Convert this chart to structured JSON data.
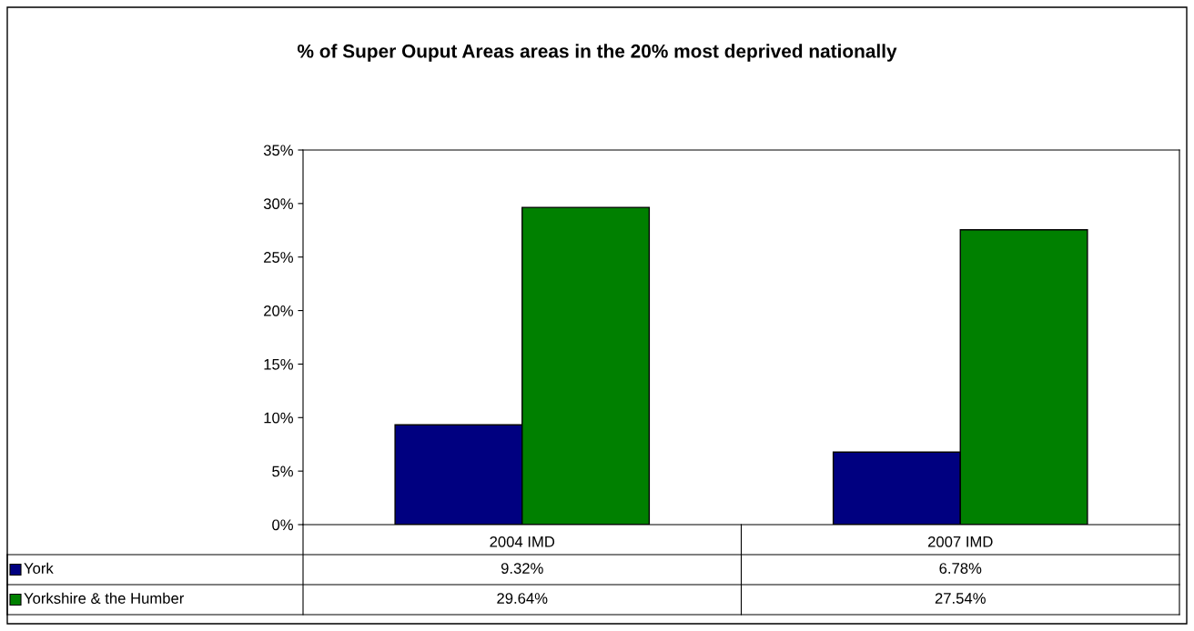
{
  "chart_data": {
    "type": "bar",
    "title": "% of Super Ouput Areas areas in the 20% most deprived nationally",
    "categories": [
      "2004 IMD",
      "2007 IMD"
    ],
    "series": [
      {
        "name": "York",
        "color": "#000080",
        "values": [
          9.32,
          6.78
        ],
        "value_labels": [
          "9.32%",
          "6.78%"
        ]
      },
      {
        "name": "Yorkshire & the Humber",
        "color": "#008000",
        "values": [
          29.64,
          27.54
        ],
        "value_labels": [
          "29.64%",
          "27.54%"
        ]
      }
    ],
    "ylim": [
      0,
      35
    ],
    "yticks": [
      {
        "value": 0,
        "label": "0%"
      },
      {
        "value": 5,
        "label": "5%"
      },
      {
        "value": 10,
        "label": "10%"
      },
      {
        "value": 15,
        "label": "15%"
      },
      {
        "value": 20,
        "label": "20%"
      },
      {
        "value": 25,
        "label": "25%"
      },
      {
        "value": 30,
        "label": "30%"
      },
      {
        "value": 35,
        "label": "35%"
      }
    ],
    "grid": false,
    "legend": "bottom"
  }
}
